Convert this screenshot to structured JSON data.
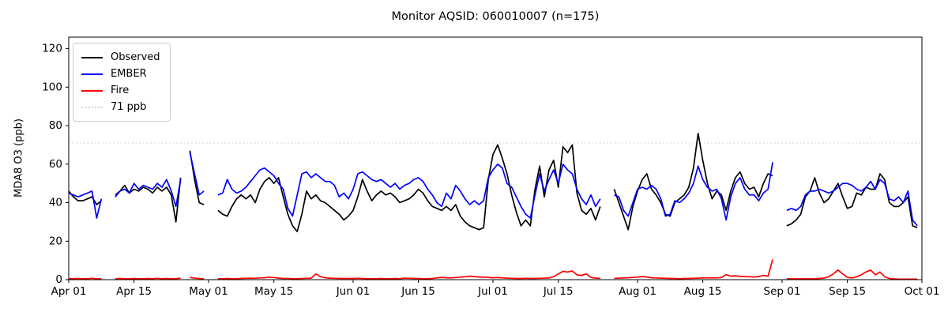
{
  "chart": {
    "title": "Monitor AQSID: 060010007 (n=175)",
    "ylabel": "MDA8 O3 (ppb)"
  },
  "legend": {
    "items": [
      {
        "label": "Observed",
        "color": "#000000",
        "style": "solid"
      },
      {
        "label": "EMBER",
        "color": "#0000ff",
        "style": "solid"
      },
      {
        "label": "Fire",
        "color": "#ff0000",
        "style": "solid"
      },
      {
        "label": "71 ppb",
        "color": "#d3d3d3",
        "style": "dotted"
      }
    ]
  },
  "chart_data": {
    "type": "line",
    "title": "Monitor AQSID: 060010007 (n=175)",
    "ylabel": "MDA8 O3 (ppb)",
    "x_start": "Apr 01",
    "x_end": "Oct 01",
    "x_range_days": 183,
    "ylim": [
      0,
      126
    ],
    "yticks": [
      0,
      20,
      40,
      60,
      80,
      100,
      120
    ],
    "xticks": [
      {
        "label": "Apr 01",
        "day": 0
      },
      {
        "label": "Apr 15",
        "day": 14
      },
      {
        "label": "May 01",
        "day": 30
      },
      {
        "label": "May 15",
        "day": 44
      },
      {
        "label": "Jun 01",
        "day": 61
      },
      {
        "label": "Jun 15",
        "day": 75
      },
      {
        "label": "Jul 01",
        "day": 91
      },
      {
        "label": "Jul 15",
        "day": 105
      },
      {
        "label": "Aug 01",
        "day": 122
      },
      {
        "label": "Aug 15",
        "day": 136
      },
      {
        "label": "Sep 01",
        "day": 153
      },
      {
        "label": "Sep 15",
        "day": 167
      },
      {
        "label": "Oct 01",
        "day": 183
      }
    ],
    "threshold": {
      "value": 71,
      "label": "71 ppb",
      "color": "#d3d3d3",
      "style": "dotted"
    },
    "legend_position": "upper left",
    "grid": false,
    "series": [
      {
        "name": "Observed",
        "color": "#000000",
        "values": [
          46,
          43,
          41,
          41,
          42,
          43,
          39,
          41,
          null,
          null,
          44,
          46,
          49,
          45,
          47,
          46,
          48,
          47,
          45,
          48,
          46,
          48,
          44,
          30,
          53,
          null,
          67,
          52,
          40,
          39,
          null,
          null,
          36,
          34,
          33,
          38,
          42,
          44,
          42,
          44,
          40,
          47,
          51,
          53,
          50,
          53,
          43,
          34,
          28,
          25,
          34,
          46,
          42,
          44,
          41,
          40,
          38,
          36,
          34,
          31,
          33,
          36,
          43,
          52,
          46,
          41,
          44,
          46,
          44,
          45,
          43,
          40,
          41,
          42,
          44,
          47,
          45,
          41,
          38,
          37,
          36,
          38,
          36,
          39,
          33,
          30,
          28,
          27,
          26,
          27,
          52,
          65,
          70,
          63,
          55,
          44,
          35,
          28,
          31,
          28,
          47,
          59,
          43,
          57,
          62,
          48,
          69,
          66,
          70,
          45,
          36,
          34,
          37,
          31,
          38,
          null,
          null,
          47,
          40,
          33,
          26,
          38,
          46,
          52,
          55,
          47,
          44,
          40,
          34,
          33,
          40,
          42,
          44,
          48,
          58,
          76,
          62,
          50,
          42,
          46,
          44,
          36,
          46,
          53,
          56,
          50,
          47,
          48,
          43,
          50,
          55,
          54,
          null,
          null,
          28,
          29,
          31,
          34,
          43,
          46,
          53,
          45,
          40,
          42,
          46,
          50,
          43,
          37,
          38,
          45,
          44,
          48,
          47,
          47,
          55,
          52,
          40,
          38,
          38,
          40,
          43,
          28,
          27
        ]
      },
      {
        "name": "EMBER",
        "color": "#0000ff",
        "values": [
          45,
          44,
          43,
          44,
          45,
          46,
          32,
          42,
          null,
          null,
          43,
          46,
          47,
          45,
          50,
          47,
          49,
          48,
          47,
          50,
          48,
          52,
          46,
          38,
          52,
          null,
          66,
          55,
          44,
          46,
          null,
          null,
          44,
          45,
          52,
          47,
          45,
          46,
          48,
          51,
          54,
          57,
          58,
          56,
          54,
          50,
          47,
          37,
          33,
          44,
          55,
          56,
          53,
          55,
          53,
          51,
          51,
          49,
          43,
          45,
          42,
          47,
          55,
          56,
          54,
          52,
          51,
          52,
          50,
          48,
          50,
          47,
          49,
          50,
          52,
          53,
          51,
          47,
          44,
          40,
          38,
          45,
          42,
          49,
          46,
          42,
          39,
          41,
          39,
          41,
          53,
          57,
          60,
          58,
          50,
          48,
          43,
          38,
          34,
          32,
          44,
          55,
          46,
          52,
          57,
          50,
          60,
          57,
          55,
          47,
          42,
          39,
          44,
          38,
          42,
          null,
          null,
          44,
          43,
          36,
          33,
          40,
          47,
          48,
          47,
          49,
          47,
          42,
          33,
          34,
          41,
          40,
          42,
          45,
          50,
          59,
          52,
          48,
          46,
          47,
          42,
          31,
          43,
          50,
          53,
          47,
          44,
          44,
          41,
          45,
          47,
          61,
          null,
          null,
          36,
          37,
          36,
          38,
          44,
          46,
          46,
          47,
          46,
          45,
          46,
          48,
          50,
          50,
          49,
          47,
          46,
          48,
          51,
          47,
          52,
          50,
          42,
          41,
          43,
          40,
          46,
          31,
          28
        ]
      },
      {
        "name": "Fire",
        "color": "#ff0000",
        "values": [
          0.5,
          0.5,
          0.6,
          0.5,
          0.5,
          0.7,
          0.5,
          0.5,
          null,
          null,
          0.5,
          0.6,
          0.5,
          0.5,
          0.6,
          0.5,
          0.5,
          0.6,
          0.5,
          0.7,
          0.5,
          0.6,
          0.5,
          0.5,
          0.8,
          null,
          1.2,
          0.8,
          0.6,
          0.5,
          null,
          null,
          0.5,
          0.5,
          0.6,
          0.5,
          0.5,
          0.6,
          0.7,
          0.8,
          0.7,
          0.9,
          1.0,
          1.3,
          1.1,
          0.8,
          0.6,
          0.6,
          0.5,
          0.5,
          0.6,
          0.7,
          0.8,
          3.0,
          1.5,
          1.0,
          0.8,
          0.7,
          0.6,
          0.6,
          0.6,
          0.6,
          0.7,
          0.6,
          0.5,
          0.5,
          0.5,
          0.6,
          0.5,
          0.5,
          0.6,
          0.5,
          0.8,
          0.7,
          0.6,
          0.6,
          0.5,
          0.5,
          0.6,
          0.9,
          1.2,
          1.0,
          0.9,
          1.1,
          1.3,
          1.5,
          1.8,
          1.6,
          1.4,
          1.3,
          1.2,
          1.0,
          1.1,
          0.9,
          0.8,
          0.7,
          0.6,
          0.6,
          0.7,
          0.6,
          0.6,
          0.7,
          0.8,
          0.9,
          1.5,
          3.0,
          4.3,
          4.0,
          4.5,
          2.5,
          2.2,
          3.0,
          1.2,
          0.8,
          0.7,
          null,
          null,
          0.7,
          0.8,
          0.9,
          1.0,
          1.2,
          1.3,
          1.6,
          1.4,
          1.0,
          0.9,
          0.8,
          0.7,
          0.6,
          0.6,
          0.5,
          0.6,
          0.6,
          0.7,
          0.8,
          0.9,
          0.9,
          1.0,
          0.9,
          1.1,
          2.6,
          1.8,
          2.0,
          1.7,
          1.6,
          1.5,
          1.4,
          1.6,
          2.2,
          1.8,
          10.5,
          null,
          null,
          0.5,
          0.4,
          0.4,
          0.4,
          0.5,
          0.4,
          0.5,
          0.6,
          0.8,
          1.5,
          3.0,
          5.0,
          3.0,
          1.2,
          0.9,
          1.5,
          2.5,
          4.0,
          5.0,
          2.5,
          4.0,
          1.5,
          0.6,
          0.4,
          0.3,
          0.3,
          0.3,
          0.3,
          0.3
        ]
      }
    ]
  }
}
